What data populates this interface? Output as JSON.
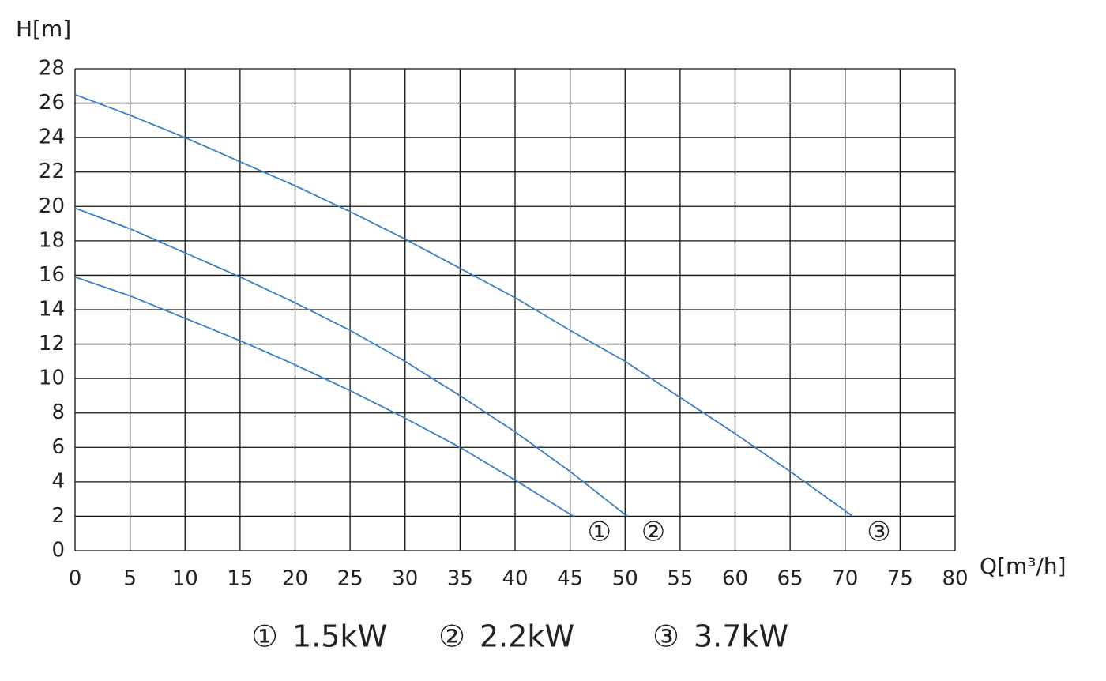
{
  "chart_data": {
    "type": "line",
    "y_label": "H[m]",
    "x_label": "Q[m³/h]",
    "xlim": [
      0,
      80
    ],
    "xticks": [
      0,
      5,
      10,
      15,
      20,
      25,
      30,
      35,
      40,
      45,
      50,
      55,
      60,
      65,
      70,
      75,
      80
    ],
    "ylim": [
      0,
      28
    ],
    "yticks": [
      0,
      2,
      4,
      6,
      8,
      10,
      12,
      14,
      16,
      18,
      20,
      22,
      24,
      26,
      28
    ],
    "grid": true,
    "series": [
      {
        "marker": "①",
        "name": "1.5kW",
        "color": "#3a80c8",
        "x": [
          0,
          5,
          10,
          15,
          20,
          25,
          30,
          35,
          40,
          45.3
        ],
        "values": [
          15.9,
          14.8,
          13.5,
          12.2,
          10.8,
          9.3,
          7.7,
          6,
          4.1,
          2
        ]
      },
      {
        "marker": "②",
        "name": "2.2kW",
        "color": "#3a80c8",
        "x": [
          0,
          5,
          10,
          15,
          20,
          25,
          30,
          35,
          40,
          45,
          50.2
        ],
        "values": [
          19.9,
          18.7,
          17.3,
          15.9,
          14.4,
          12.8,
          11,
          9,
          6.9,
          4.6,
          2
        ]
      },
      {
        "marker": "③",
        "name": "3.7kW",
        "color": "#3a80c8",
        "x": [
          0,
          5,
          10,
          15,
          20,
          25,
          30,
          35,
          40,
          45,
          50,
          55,
          60,
          65,
          70.7
        ],
        "values": [
          26.5,
          25.3,
          24,
          22.6,
          21.2,
          19.7,
          18.1,
          16.4,
          14.7,
          12.8,
          11,
          8.9,
          6.8,
          4.6,
          2
        ]
      }
    ]
  }
}
